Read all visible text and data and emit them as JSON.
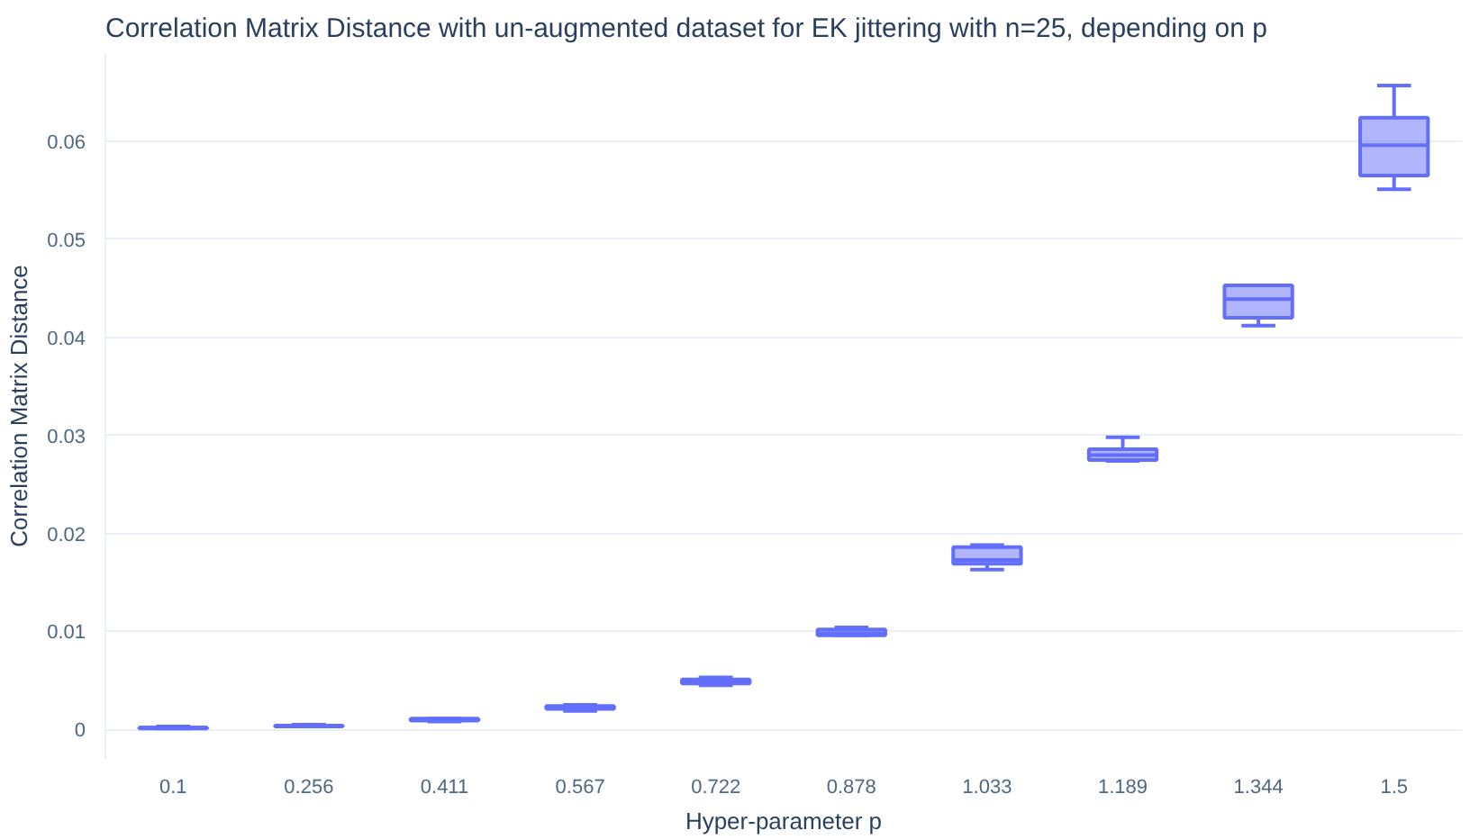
{
  "chart_data": {
    "type": "box",
    "title": "Correlation Matrix Distance with un-augmented dataset for EK jittering with n=25, depending on p",
    "xlabel": "Hyper-parameter p",
    "ylabel": "Correlation Matrix Distance",
    "categories": [
      "0.1",
      "0.256",
      "0.411",
      "0.567",
      "0.722",
      "0.878",
      "1.033",
      "1.189",
      "1.344",
      "1.5"
    ],
    "series": [
      {
        "color": "#636efa",
        "boxes": [
          {
            "low": 0.0001,
            "q1": 0.0001,
            "median": 0.0002,
            "q3": 0.0002,
            "high": 0.0003
          },
          {
            "low": 0.0003,
            "q1": 0.0003,
            "median": 0.0004,
            "q3": 0.0004,
            "high": 0.0005
          },
          {
            "low": 0.0008,
            "q1": 0.0009,
            "median": 0.001,
            "q3": 0.0011,
            "high": 0.0011
          },
          {
            "low": 0.0019,
            "q1": 0.0021,
            "median": 0.0022,
            "q3": 0.0024,
            "high": 0.0025
          },
          {
            "low": 0.0045,
            "q1": 0.0047,
            "median": 0.0049,
            "q3": 0.0051,
            "high": 0.0053
          },
          {
            "low": 0.0096,
            "q1": 0.0096,
            "median": 0.0098,
            "q3": 0.0102,
            "high": 0.0104
          },
          {
            "low": 0.0163,
            "q1": 0.0169,
            "median": 0.0173,
            "q3": 0.0186,
            "high": 0.0188
          },
          {
            "low": 0.0274,
            "q1": 0.0275,
            "median": 0.028,
            "q3": 0.0286,
            "high": 0.0298
          },
          {
            "low": 0.0412,
            "q1": 0.042,
            "median": 0.0439,
            "q3": 0.0453,
            "high": 0.0453
          },
          {
            "low": 0.0551,
            "q1": 0.0565,
            "median": 0.0596,
            "q3": 0.0624,
            "high": 0.0657
          }
        ]
      }
    ],
    "ylim": [
      -0.003,
      0.069
    ],
    "yticks": [
      {
        "value": 0,
        "label": "0"
      },
      0.01,
      0.02,
      0.03,
      0.04,
      0.05,
      0.06
    ],
    "grid": "y"
  }
}
